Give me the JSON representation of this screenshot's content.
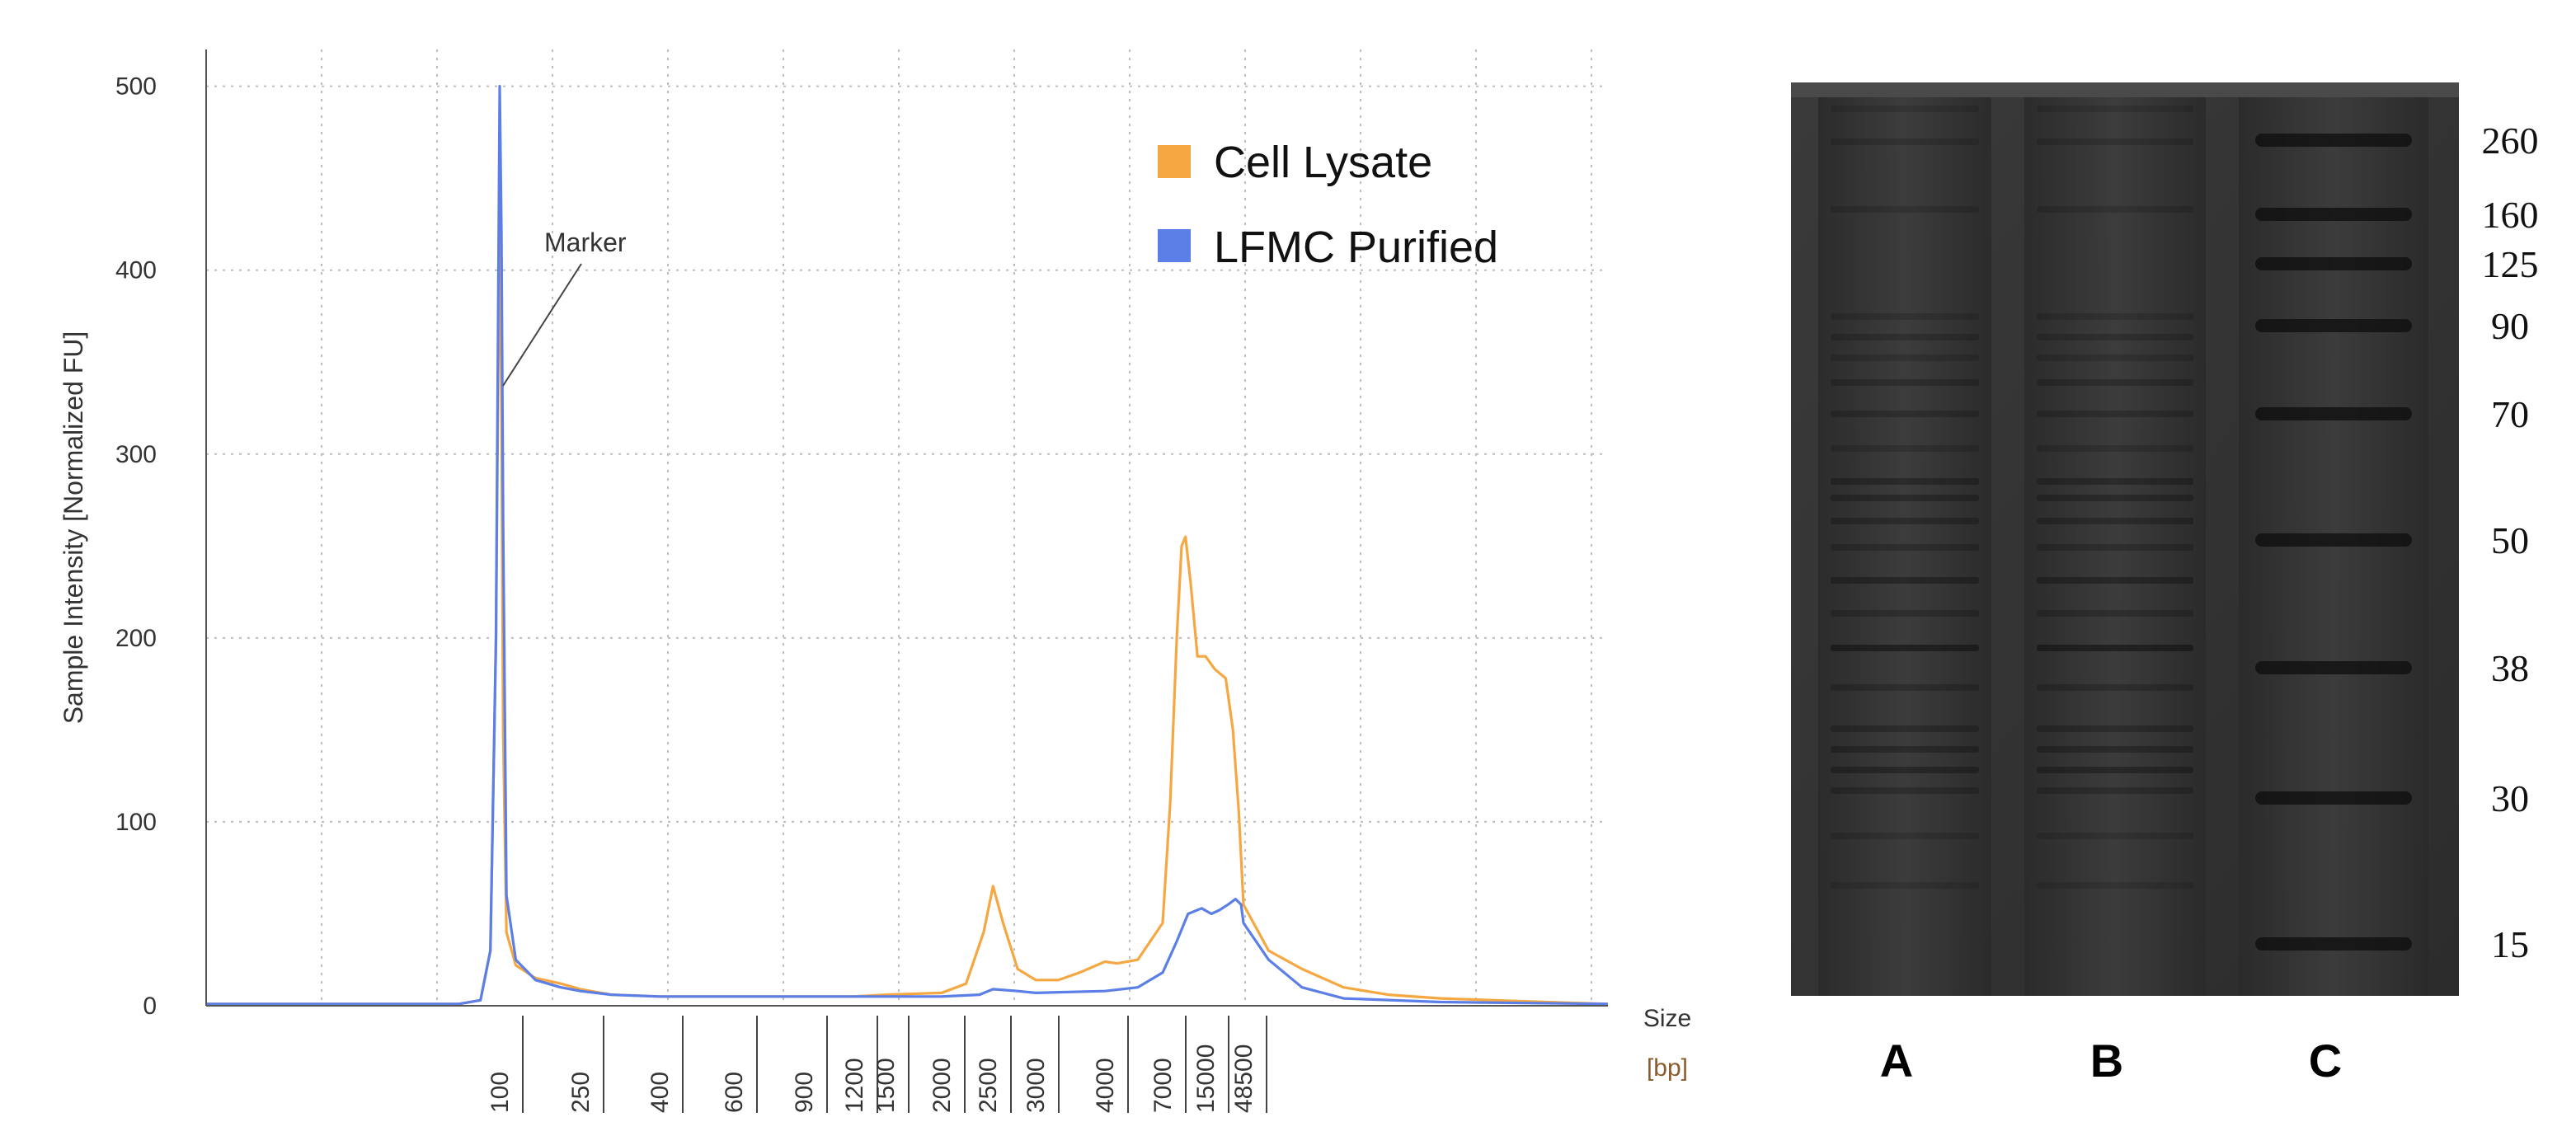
{
  "chart_data": [
    {
      "type": "line",
      "title": "",
      "xlabel": "Size",
      "xunit": "[bp]",
      "ylabel": "Sample Intensity [Normalized FU]",
      "ylim": [
        0,
        520
      ],
      "yticks": [
        "0",
        "100",
        "200",
        "300",
        "400",
        "500"
      ],
      "x_tick_labels": [
        "100",
        "250",
        "400",
        "600",
        "900",
        "1200",
        "1500",
        "2000",
        "2500",
        "3000",
        "4000",
        "7000",
        "15000",
        "48500"
      ],
      "grid": true,
      "legend": {
        "placement": "top-right",
        "entries": [
          "Cell Lysate",
          "LFMC Purified"
        ]
      },
      "annotation": "Marker",
      "series": [
        {
          "name": "Cell Lysate",
          "color": "#f5a742",
          "points": [
            [
              20,
              1
            ],
            [
              80,
              1
            ],
            [
              90,
              3
            ],
            [
              95,
              30
            ],
            [
              98,
              200
            ],
            [
              100,
              440
            ],
            [
              102,
              330
            ],
            [
              104,
              150
            ],
            [
              108,
              40
            ],
            [
              120,
              22
            ],
            [
              150,
              15
            ],
            [
              200,
              12
            ],
            [
              250,
              9
            ],
            [
              300,
              6
            ],
            [
              400,
              5
            ],
            [
              600,
              5
            ],
            [
              900,
              5
            ],
            [
              1200,
              5
            ],
            [
              1500,
              6
            ],
            [
              2000,
              7
            ],
            [
              2250,
              12
            ],
            [
              2450,
              40
            ],
            [
              2550,
              65
            ],
            [
              2650,
              45
            ],
            [
              2800,
              20
            ],
            [
              3000,
              14
            ],
            [
              3300,
              14
            ],
            [
              3600,
              18
            ],
            [
              4000,
              24
            ],
            [
              4500,
              23
            ],
            [
              5500,
              25
            ],
            [
              7000,
              45
            ],
            [
              8000,
              110
            ],
            [
              9000,
              200
            ],
            [
              9800,
              250
            ],
            [
              10500,
              255
            ],
            [
              11500,
              230
            ],
            [
              13000,
              190
            ],
            [
              15000,
              190
            ],
            [
              20000,
              183
            ],
            [
              28000,
              178
            ],
            [
              35000,
              150
            ],
            [
              42000,
              105
            ],
            [
              48500,
              55
            ],
            [
              55000,
              30
            ],
            [
              65000,
              20
            ],
            [
              80000,
              10
            ],
            [
              100000,
              6
            ],
            [
              130000,
              4
            ],
            [
              170000,
              3
            ],
            [
              220000,
              2
            ],
            [
              300000,
              1
            ]
          ]
        },
        {
          "name": "LFMC Purified",
          "color": "#5b7fe6",
          "points": [
            [
              20,
              1
            ],
            [
              80,
              1
            ],
            [
              90,
              3
            ],
            [
              95,
              30
            ],
            [
              98,
              200
            ],
            [
              100,
              500
            ],
            [
              102,
              420
            ],
            [
              104,
              260
            ],
            [
              108,
              60
            ],
            [
              120,
              25
            ],
            [
              150,
              14
            ],
            [
              200,
              10
            ],
            [
              250,
              8
            ],
            [
              300,
              6
            ],
            [
              400,
              5
            ],
            [
              600,
              5
            ],
            [
              900,
              5
            ],
            [
              1200,
              5
            ],
            [
              1500,
              5
            ],
            [
              2000,
              5
            ],
            [
              2400,
              6
            ],
            [
              2550,
              9
            ],
            [
              2800,
              8
            ],
            [
              3000,
              7
            ],
            [
              4000,
              8
            ],
            [
              5500,
              10
            ],
            [
              7000,
              18
            ],
            [
              9000,
              35
            ],
            [
              11000,
              50
            ],
            [
              14000,
              53
            ],
            [
              18000,
              50
            ],
            [
              23000,
              52
            ],
            [
              30000,
              55
            ],
            [
              38000,
              58
            ],
            [
              45000,
              55
            ],
            [
              48500,
              45
            ],
            [
              55000,
              25
            ],
            [
              65000,
              10
            ],
            [
              80000,
              4
            ],
            [
              130000,
              2
            ],
            [
              300000,
              1
            ]
          ]
        }
      ]
    },
    {
      "type": "other",
      "title": "",
      "size_labels": [
        "260",
        "160",
        "125",
        "90",
        "70",
        "50",
        "38",
        "30",
        "15"
      ],
      "lanes": [
        "A",
        "B",
        "C"
      ]
    }
  ]
}
